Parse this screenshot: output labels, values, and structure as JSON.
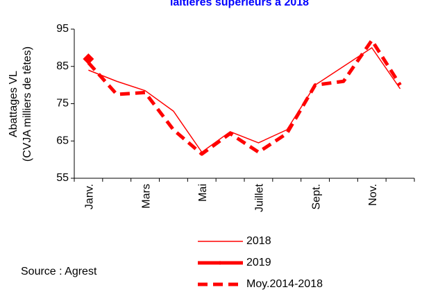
{
  "chart_data": {
    "type": "line",
    "title": "laitières supérieurs à 2018",
    "y_label": [
      "Abattages VL",
      "(CVJA milliers de têtes)"
    ],
    "source": "Source : Agrest",
    "categories": [
      "Janv.",
      null,
      "Mars",
      null,
      "Mai",
      null,
      "Juillet",
      null,
      "Sept.",
      null,
      "Nov.",
      null
    ],
    "series": [
      {
        "name": "2018",
        "color": "#ff0000",
        "width": 1.5,
        "dashed": false,
        "marker": false,
        "values": [
          84,
          81,
          78.5,
          73,
          62,
          67.5,
          64.5,
          68,
          80,
          85,
          90,
          79
        ]
      },
      {
        "name": "2019",
        "color": "#ff0000",
        "width": 5,
        "dashed": false,
        "marker": true,
        "values": [
          87,
          null,
          null,
          null,
          null,
          null,
          null,
          null,
          null,
          null,
          null,
          null
        ]
      },
      {
        "name": "Moy.2014-2018",
        "color": "#ff0000",
        "width": 5,
        "dashed": true,
        "marker": false,
        "values": [
          86,
          77.5,
          78,
          68,
          61.5,
          67,
          62,
          67,
          80,
          81,
          92,
          80
        ]
      }
    ],
    "ylim": [
      55,
      95
    ],
    "yticks": [
      55,
      65,
      75,
      85,
      95
    ]
  }
}
